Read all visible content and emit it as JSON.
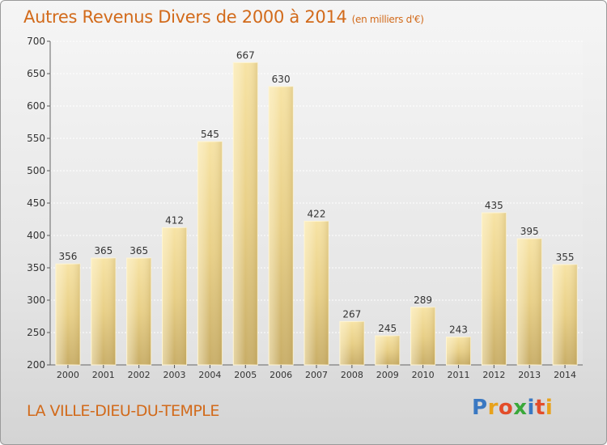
{
  "chart_data": {
    "type": "bar",
    "title": "Autres Revenus Divers de 2000 à 2014",
    "unit_note": "(en milliers d'€)",
    "categories": [
      "2000",
      "2001",
      "2002",
      "2003",
      "2004",
      "2005",
      "2006",
      "2007",
      "2008",
      "2009",
      "2010",
      "2011",
      "2012",
      "2013",
      "2014"
    ],
    "values": [
      356,
      365,
      365,
      412,
      545,
      667,
      630,
      422,
      267,
      245,
      289,
      243,
      435,
      395,
      355
    ],
    "ylim": [
      200,
      700
    ],
    "yticks": [
      200,
      250,
      300,
      350,
      400,
      450,
      500,
      550,
      600,
      650,
      700
    ],
    "grid": true,
    "bar_color": "#e8cf86"
  },
  "footer": {
    "city": "LA VILLE-DIEU-DU-TEMPLE",
    "logo": {
      "text": "Proxiti",
      "letters": [
        "P",
        "r",
        "o",
        "x",
        "i",
        "t",
        "i"
      ],
      "colors": [
        "#3a78c2",
        "#e8a21c",
        "#e34d2a",
        "#3aa83a",
        "#3a78c2",
        "#e34d2a",
        "#e8a21c"
      ]
    }
  }
}
